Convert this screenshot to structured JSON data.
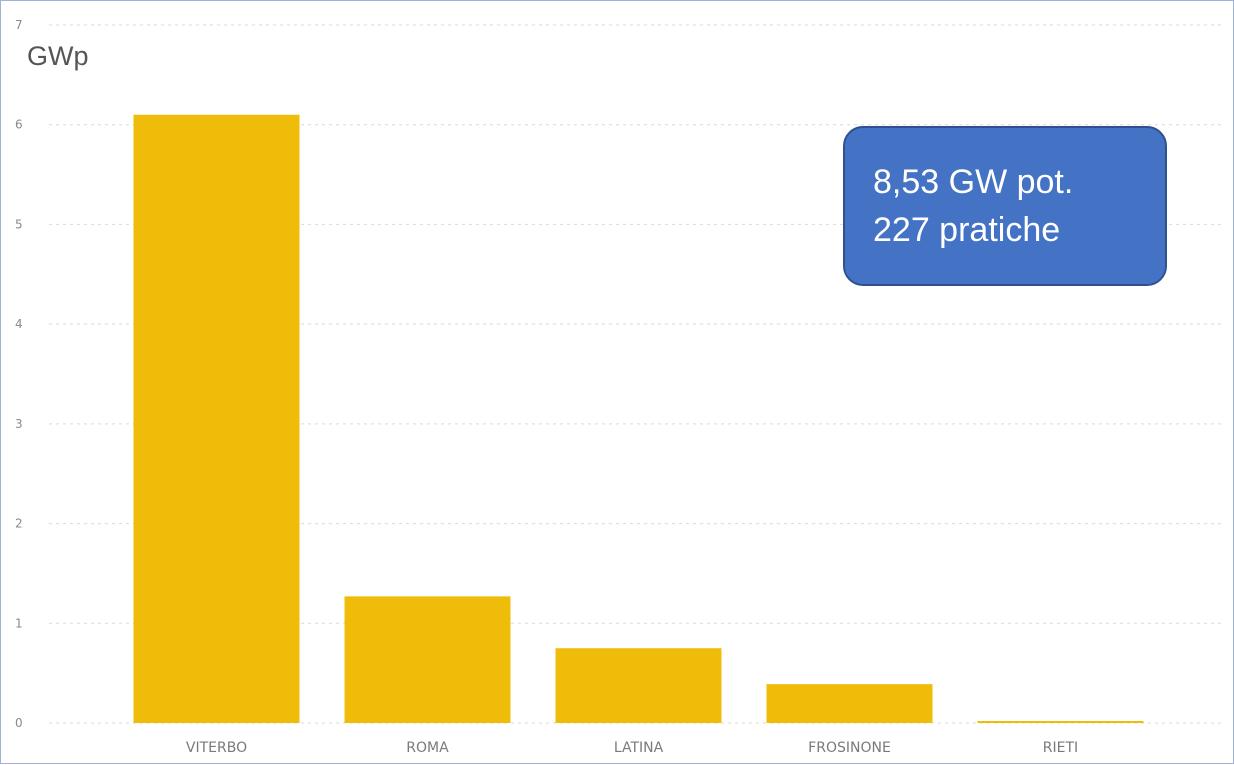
{
  "chart_data": {
    "type": "bar",
    "unit_label": "GWp",
    "categories": [
      "VITERBO",
      "ROMA",
      "LATINA",
      "FROSINONE",
      "RIETI"
    ],
    "values": [
      6.1,
      1.27,
      0.75,
      0.39,
      0.02
    ],
    "ylim": [
      0,
      7
    ],
    "yticks": [
      "0",
      "1",
      "2",
      "3",
      "4",
      "5",
      "6",
      "7"
    ],
    "bar_color": "#f0bc0a",
    "grid": true,
    "annotation": {
      "line1": "8,53 GW pot.",
      "line2": "227 pratiche",
      "background": "#4472c4"
    }
  }
}
